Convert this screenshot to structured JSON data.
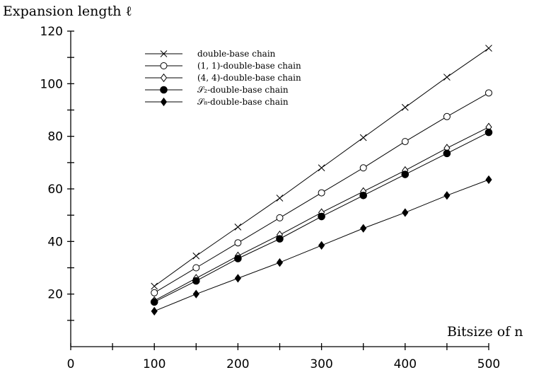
{
  "chart_data": {
    "type": "line",
    "ylabel": "Expansion length ℓ",
    "xlabel": "Bitsize of n",
    "xlim": [
      0,
      500
    ],
    "ylim": [
      0,
      120
    ],
    "x_ticks": [
      0,
      100,
      200,
      300,
      400,
      500
    ],
    "y_ticks": [
      20,
      40,
      60,
      80,
      100,
      120
    ],
    "grid": false,
    "legend_position": "top-left",
    "x": [
      100,
      150,
      200,
      250,
      300,
      350,
      400,
      450,
      500
    ],
    "series": [
      {
        "name": "double-base chain",
        "marker": "cross",
        "values": [
          23,
          34.5,
          45.5,
          56.5,
          68,
          79.5,
          91,
          102.5,
          113.5
        ]
      },
      {
        "name": "(1, 1)-double-base chain",
        "marker": "open-circle",
        "values": [
          20.5,
          30,
          39.5,
          49,
          58.5,
          68,
          78,
          87.5,
          96.5
        ]
      },
      {
        "name": "(4, 4)-double-base chain",
        "marker": "open-diamond",
        "values": [
          17.5,
          26,
          34.5,
          42.5,
          51,
          59,
          67,
          75.5,
          83.5
        ]
      },
      {
        "name": "𝒮₂-double-base chain",
        "marker": "filled-circle",
        "values": [
          17,
          25,
          33.5,
          41,
          49.5,
          57.5,
          65.5,
          73.5,
          81.5
        ]
      },
      {
        "name": "𝒮₈-double-base chain",
        "marker": "filled-diamond",
        "values": [
          13.5,
          20,
          26,
          32,
          38.5,
          45,
          51,
          57.5,
          63.5
        ]
      }
    ]
  }
}
